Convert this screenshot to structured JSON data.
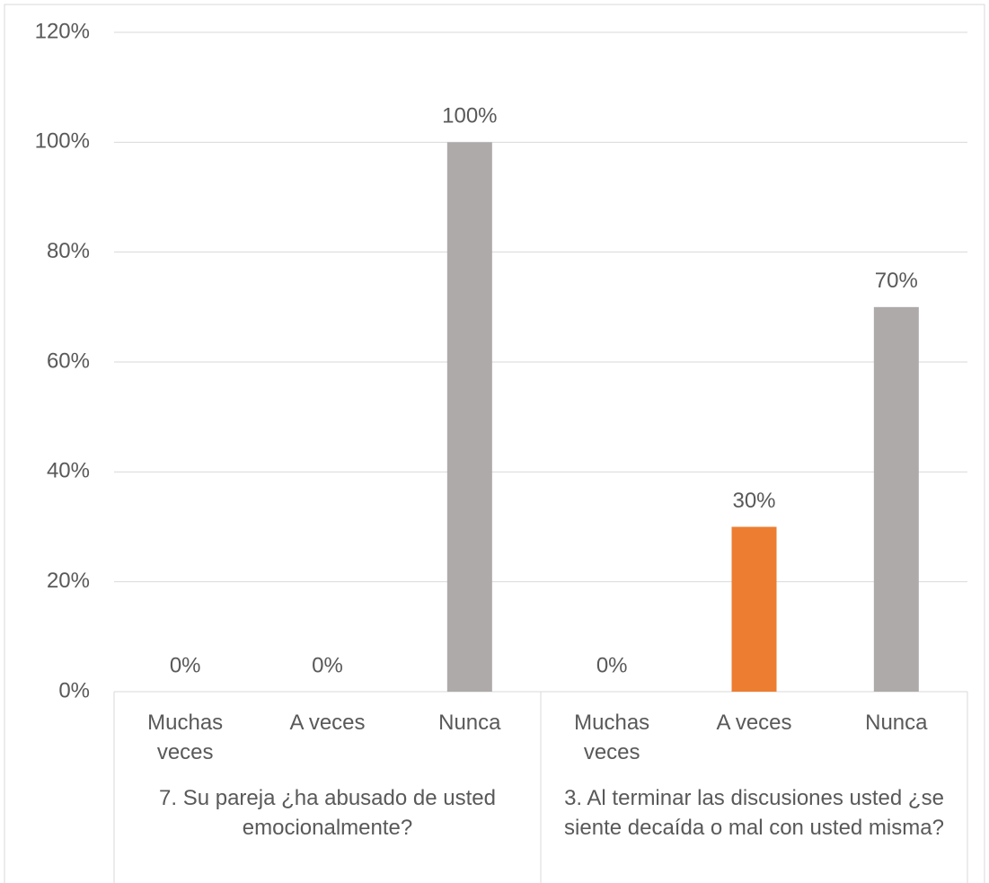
{
  "chart_data": {
    "type": "bar",
    "groups": [
      {
        "name": "7. Su pareja ¿ha abusado de usted emocionalmente?",
        "categories": [
          "Muchas veces",
          "A veces",
          "Nunca"
        ],
        "values": [
          0,
          0,
          100
        ],
        "value_labels": [
          "0%",
          "0%",
          "100%"
        ]
      },
      {
        "name": "3. Al terminar las discusiones usted ¿se siente decaída o mal con usted misma?",
        "categories": [
          "Muchas veces",
          "A veces",
          "Nunca"
        ],
        "values": [
          0,
          30,
          70
        ],
        "value_labels": [
          "0%",
          "30%",
          "70%"
        ]
      }
    ],
    "colors": [
      "#4472c4",
      "#ed7d31",
      "#aeaaaa"
    ],
    "ylim": [
      0,
      120
    ],
    "yticks": [
      {
        "value": 0,
        "label": "0%"
      },
      {
        "value": 20,
        "label": "20%"
      },
      {
        "value": 40,
        "label": "40%"
      },
      {
        "value": 60,
        "label": "60%"
      },
      {
        "value": 80,
        "label": "80%"
      },
      {
        "value": 100,
        "label": "100%"
      },
      {
        "value": 120,
        "label": "120%"
      }
    ],
    "grid": true
  }
}
